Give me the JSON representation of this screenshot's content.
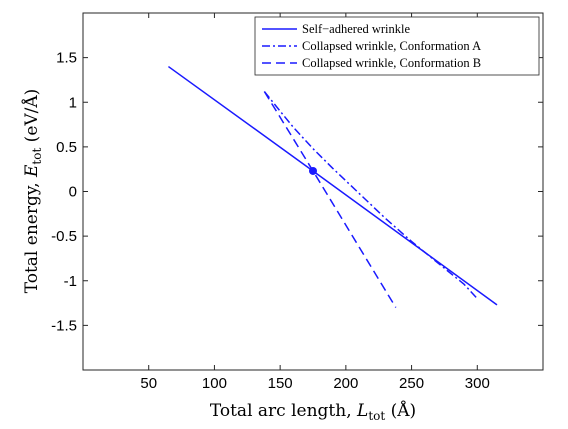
{
  "chart_data": {
    "type": "line",
    "xlabel": {
      "main": "Total arc length, ",
      "var": "L",
      "sub": "tot",
      "unit": " (Å)"
    },
    "ylabel": {
      "main": "Total energy, ",
      "var": "E",
      "sub": "tot",
      "unit": " (eV/Å)"
    },
    "xlim": [
      0,
      350
    ],
    "ylim": [
      -2,
      2
    ],
    "xticks": [
      50,
      100,
      150,
      200,
      250,
      300
    ],
    "yticks": [
      1.5,
      1,
      0.5,
      0,
      -0.5,
      -1,
      -1.5
    ],
    "xtick_labels": [
      "50",
      "100",
      "150",
      "200",
      "250",
      "300"
    ],
    "ytick_labels": [
      "1.5",
      "1",
      "0.5",
      "0",
      "-0.5",
      "-1",
      "-1.5"
    ],
    "grid": false,
    "legend_position": "top-right",
    "color": "#1a1aff",
    "series": [
      {
        "name": "Self−adhered wrinkle",
        "style": "solid",
        "x": [
          65,
          175,
          315
        ],
        "y": [
          1.4,
          0.23,
          -1.27
        ]
      },
      {
        "name": "Collapsed wrinkle, Conformation A",
        "style": "dashdot",
        "x": [
          138,
          150,
          160,
          175,
          190,
          210,
          230,
          250,
          270,
          290,
          300
        ],
        "y": [
          1.12,
          0.9,
          0.72,
          0.48,
          0.26,
          -0.02,
          -0.3,
          -0.56,
          -0.8,
          -1.04,
          -1.2
        ]
      },
      {
        "name": "Collapsed wrinkle, Conformation B",
        "style": "dashed",
        "x": [
          138,
          175,
          238
        ],
        "y": [
          1.12,
          0.23,
          -1.3
        ]
      }
    ],
    "markers": [
      {
        "x": 175,
        "y": 0.23
      }
    ]
  }
}
